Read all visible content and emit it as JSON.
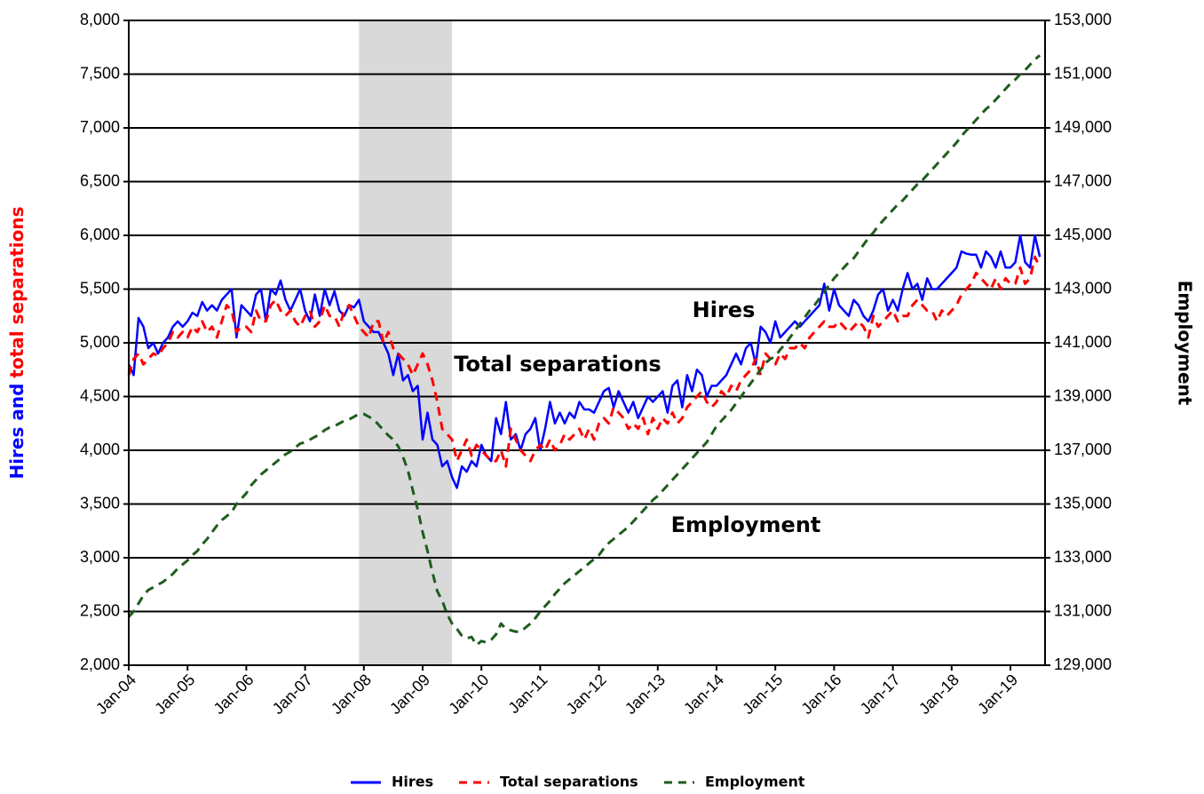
{
  "chart_data": {
    "type": "line",
    "ylabel_parts": [
      {
        "text": "Hires and",
        "color": "#0000ff"
      },
      {
        "text": "total separations",
        "color": "#ff0000"
      }
    ],
    "y2label": "Employment",
    "y2label_color": "#1e5c1e",
    "annotations": [
      {
        "text": "Hires",
        "color": "#0000ff"
      },
      {
        "text": "Total separations",
        "color": "#ff0000"
      },
      {
        "text": "Employment",
        "color": "#1e5c1e"
      }
    ],
    "shaded_range": [
      47,
      66
    ],
    "shade_color": "#d9d9d9",
    "grid": true,
    "ylim": [
      2000,
      8000
    ],
    "yticks": [
      {
        "value": 2000,
        "label": "2,000"
      },
      {
        "value": 2500,
        "label": "2,500"
      },
      {
        "value": 3000,
        "label": "3,000"
      },
      {
        "value": 3500,
        "label": "3,500"
      },
      {
        "value": 4000,
        "label": "4,000"
      },
      {
        "value": 4500,
        "label": "4,500"
      },
      {
        "value": 5000,
        "label": "5,000"
      },
      {
        "value": 5500,
        "label": "5,500"
      },
      {
        "value": 6000,
        "label": "6,000"
      },
      {
        "value": 6500,
        "label": "6,500"
      },
      {
        "value": 7000,
        "label": "7,000"
      },
      {
        "value": 7500,
        "label": "7,500"
      },
      {
        "value": 8000,
        "label": "8,000"
      }
    ],
    "y2lim": [
      129000,
      153000
    ],
    "y2ticks": [
      {
        "value": 129000,
        "label": "129,000"
      },
      {
        "value": 131000,
        "label": "131,000"
      },
      {
        "value": 133000,
        "label": "133,000"
      },
      {
        "value": 135000,
        "label": "135,000"
      },
      {
        "value": 137000,
        "label": "137,000"
      },
      {
        "value": 139000,
        "label": "139,000"
      },
      {
        "value": 141000,
        "label": "141,000"
      },
      {
        "value": 143000,
        "label": "143,000"
      },
      {
        "value": 145000,
        "label": "145,000"
      },
      {
        "value": 147000,
        "label": "147,000"
      },
      {
        "value": 149000,
        "label": "149,000"
      },
      {
        "value": 151000,
        "label": "151,000"
      },
      {
        "value": 153000,
        "label": "153,000"
      }
    ],
    "categories": [
      "Jan-04",
      null,
      null,
      null,
      null,
      null,
      null,
      null,
      null,
      null,
      null,
      null,
      "Jan-05",
      null,
      null,
      null,
      null,
      null,
      null,
      null,
      null,
      null,
      null,
      null,
      "Jan-06",
      null,
      null,
      null,
      null,
      null,
      null,
      null,
      null,
      null,
      null,
      null,
      "Jan-07",
      null,
      null,
      null,
      null,
      null,
      null,
      null,
      null,
      null,
      null,
      null,
      "Jan-08",
      null,
      null,
      null,
      null,
      null,
      null,
      null,
      null,
      null,
      null,
      null,
      "Jan-09",
      null,
      null,
      null,
      null,
      null,
      null,
      null,
      null,
      null,
      null,
      null,
      "Jan-10",
      null,
      null,
      null,
      null,
      null,
      null,
      null,
      null,
      null,
      null,
      null,
      "Jan-11",
      null,
      null,
      null,
      null,
      null,
      null,
      null,
      null,
      null,
      null,
      null,
      "Jan-12",
      null,
      null,
      null,
      null,
      null,
      null,
      null,
      null,
      null,
      null,
      null,
      "Jan-13",
      null,
      null,
      null,
      null,
      null,
      null,
      null,
      null,
      null,
      null,
      null,
      "Jan-14",
      null,
      null,
      null,
      null,
      null,
      null,
      null,
      null,
      null,
      null,
      null,
      "Jan-15",
      null,
      null,
      null,
      null,
      null,
      null,
      null,
      null,
      null,
      null,
      null,
      "Jan-16",
      null,
      null,
      null,
      null,
      null,
      null,
      null,
      null,
      null,
      null,
      null,
      "Jan-17",
      null,
      null,
      null,
      null,
      null,
      null,
      null,
      null,
      null,
      null,
      null,
      "Jan-18",
      null,
      null,
      null,
      null,
      null,
      null,
      null,
      null,
      null,
      null,
      null,
      "Jan-19",
      null,
      null,
      null,
      null,
      null,
      null
    ],
    "series": [
      {
        "name": "Hires",
        "color": "#0000ff",
        "style": "solid",
        "values": [
          4800,
          4700,
          5230,
          5150,
          4950,
          5000,
          4900,
          5000,
          5050,
          5150,
          5200,
          5150,
          5200,
          5280,
          5250,
          5380,
          5300,
          5350,
          5300,
          5400,
          5450,
          5500,
          5050,
          5350,
          5300,
          5250,
          5450,
          5500,
          5200,
          5500,
          5450,
          5580,
          5400,
          5300,
          5400,
          5500,
          5300,
          5200,
          5450,
          5250,
          5500,
          5350,
          5480,
          5300,
          5250,
          5350,
          5330,
          5400,
          5200,
          5150,
          5100,
          5100,
          5000,
          4900,
          4700,
          4900,
          4650,
          4700,
          4550,
          4600,
          4100,
          4350,
          4100,
          4050,
          3850,
          3900,
          3750,
          3650,
          3850,
          3800,
          3900,
          3850,
          4050,
          3950,
          3900,
          4300,
          4150,
          4450,
          4100,
          4150,
          4000,
          4150,
          4200,
          4300,
          4000,
          4200,
          4450,
          4250,
          4350,
          4250,
          4350,
          4300,
          4450,
          4380,
          4380,
          4350,
          4450,
          4550,
          4580,
          4400,
          4550,
          4450,
          4350,
          4450,
          4300,
          4400,
          4500,
          4450,
          4500,
          4550,
          4350,
          4600,
          4650,
          4400,
          4700,
          4550,
          4750,
          4700,
          4500,
          4600,
          4600,
          4650,
          4700,
          4800,
          4900,
          4800,
          4950,
          5000,
          4800,
          5150,
          5100,
          5000,
          5200,
          5050,
          5100,
          5150,
          5200,
          5150,
          5200,
          5250,
          5300,
          5350,
          5550,
          5300,
          5500,
          5350,
          5300,
          5250,
          5400,
          5350,
          5250,
          5200,
          5300,
          5450,
          5500,
          5300,
          5400,
          5300,
          5500,
          5650,
          5500,
          5550,
          5400,
          5600,
          5500,
          5500,
          5550,
          5600,
          5650,
          5700,
          5850,
          5830,
          5820,
          5820,
          5700,
          5850,
          5800,
          5700,
          5850,
          5700,
          5700,
          5750,
          6000,
          5750,
          5700,
          6000,
          5800
        ]
      },
      {
        "name": "Total separations",
        "color": "#ff0000",
        "style": "dashed",
        "values": [
          4700,
          4850,
          4900,
          4800,
          4850,
          4900,
          4880,
          4950,
          5000,
          5100,
          5050,
          5100,
          5050,
          5150,
          5100,
          5200,
          5100,
          5150,
          5050,
          5200,
          5350,
          5300,
          5100,
          5150,
          5150,
          5100,
          5300,
          5200,
          5200,
          5350,
          5400,
          5300,
          5250,
          5300,
          5200,
          5150,
          5250,
          5300,
          5150,
          5200,
          5350,
          5250,
          5250,
          5150,
          5300,
          5350,
          5250,
          5150,
          5100,
          5050,
          5200,
          5200,
          5000,
          5100,
          4950,
          4900,
          4850,
          4800,
          4700,
          4800,
          4900,
          4800,
          4650,
          4450,
          4200,
          4150,
          4100,
          3900,
          4000,
          4100,
          3950,
          4050,
          4000,
          3950,
          3900,
          3900,
          4000,
          3850,
          4200,
          4100,
          4000,
          3950,
          3900,
          4000,
          4050,
          4000,
          4100,
          4000,
          4050,
          4150,
          4100,
          4150,
          4200,
          4100,
          4200,
          4100,
          4250,
          4300,
          4250,
          4400,
          4350,
          4300,
          4200,
          4250,
          4200,
          4300,
          4150,
          4300,
          4200,
          4300,
          4250,
          4350,
          4250,
          4300,
          4400,
          4450,
          4500,
          4550,
          4450,
          4400,
          4450,
          4550,
          4500,
          4600,
          4550,
          4650,
          4700,
          4750,
          4850,
          4700,
          4900,
          4850,
          4800,
          4900,
          4850,
          4950,
          4950,
          5000,
          4950,
          5050,
          5100,
          5150,
          5200,
          5150,
          5150,
          5200,
          5150,
          5100,
          5150,
          5200,
          5150,
          5050,
          5250,
          5150,
          5200,
          5250,
          5300,
          5200,
          5250,
          5250,
          5350,
          5400,
          5350,
          5300,
          5300,
          5200,
          5300,
          5250,
          5300,
          5350,
          5450,
          5500,
          5550,
          5650,
          5600,
          5550,
          5500,
          5600,
          5500,
          5600,
          5550,
          5550,
          5700,
          5550,
          5600,
          5800,
          5700
        ]
      },
      {
        "name": "Employment",
        "color": "#1e5c1e",
        "style": "dashed",
        "axis": "y2",
        "values": [
          130800,
          131000,
          131300,
          131600,
          131800,
          131900,
          132000,
          132100,
          132250,
          132400,
          132600,
          132750,
          132900,
          133100,
          133250,
          133500,
          133700,
          133950,
          134200,
          134400,
          134550,
          134700,
          135000,
          135200,
          135400,
          135700,
          135900,
          136100,
          136250,
          136400,
          136550,
          136700,
          136850,
          136950,
          137100,
          137250,
          137300,
          137400,
          137500,
          137600,
          137750,
          137850,
          137900,
          138000,
          138100,
          138150,
          138250,
          138350,
          138350,
          138250,
          138150,
          137950,
          137750,
          137550,
          137400,
          137150,
          136750,
          136250,
          135500,
          134800,
          133950,
          133250,
          132450,
          131750,
          131400,
          130900,
          130550,
          130350,
          130100,
          130000,
          130050,
          129750,
          129900,
          129850,
          129950,
          130150,
          130550,
          130350,
          130300,
          130250,
          130250,
          130400,
          130550,
          130750,
          131000,
          131200,
          131400,
          131650,
          131850,
          132050,
          132200,
          132350,
          132500,
          132650,
          132800,
          132950,
          133100,
          133350,
          133550,
          133700,
          133850,
          134000,
          134150,
          134350,
          134550,
          134750,
          134950,
          135150,
          135300,
          135500,
          135700,
          135900,
          136100,
          136300,
          136500,
          136700,
          136900,
          137100,
          137300,
          137600,
          137900,
          138100,
          138300,
          138500,
          138750,
          139000,
          139250,
          139500,
          139750,
          140000,
          140250,
          140400,
          140500,
          140750,
          140950,
          141200,
          141450,
          141700,
          141950,
          142200,
          142400,
          142650,
          142900,
          143150,
          143400,
          143600,
          143800,
          144000,
          144150,
          144400,
          144650,
          144900,
          145100,
          145350,
          145550,
          145750,
          145950,
          146150,
          146300,
          146500,
          146700,
          146900,
          147050,
          147250,
          147450,
          147650,
          147850,
          148050,
          148250,
          148450,
          148700,
          148900,
          149100,
          149300,
          149500,
          149700,
          149850,
          150050,
          150250,
          150450,
          150650,
          150800,
          151000,
          151150,
          151350,
          151550,
          151700
        ]
      }
    ]
  }
}
